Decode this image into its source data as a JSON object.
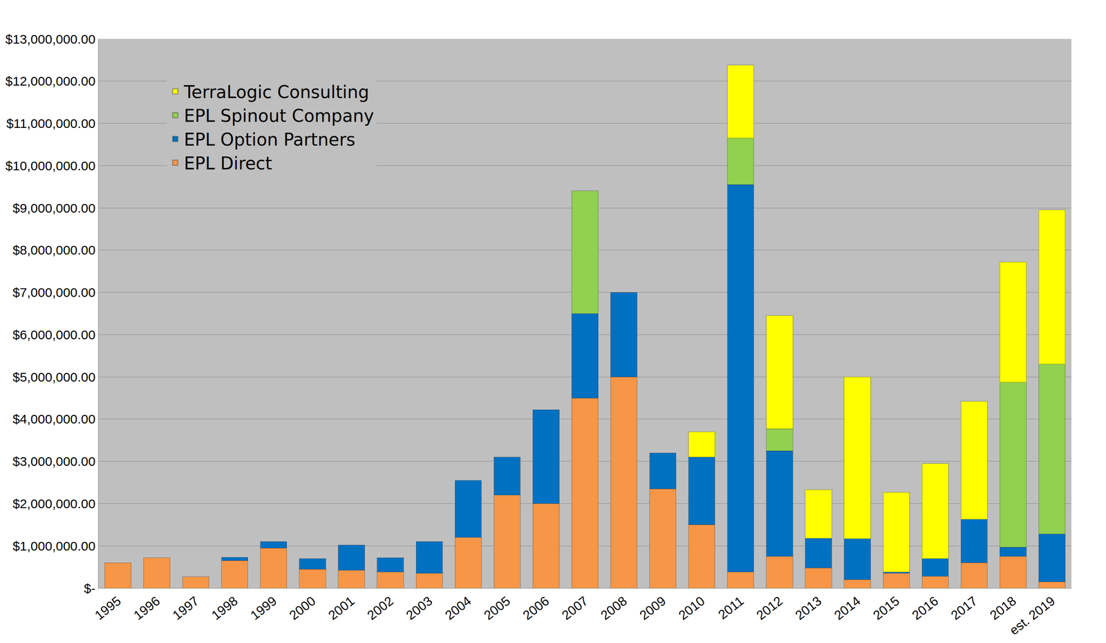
{
  "chart_data": {
    "type": "bar",
    "stacked": true,
    "grid": true,
    "legend": "upper left",
    "categories": [
      "1995",
      "1996",
      "1997",
      "1998",
      "1999",
      "2000",
      "2001",
      "2002",
      "2003",
      "2004",
      "2005",
      "2006",
      "2007",
      "2008",
      "2009",
      "2010",
      "2011",
      "2012",
      "2013",
      "2014",
      "2015",
      "2016",
      "2017",
      "2018",
      "est. 2019"
    ],
    "ylim": [
      0,
      13000000
    ],
    "yticks": [
      {
        "value": 0,
        "label": "$-"
      },
      {
        "value": 1000000,
        "label": "$1,000,000.00"
      },
      {
        "value": 2000000,
        "label": "$2,000,000.00"
      },
      {
        "value": 3000000,
        "label": "$3,000,000.00"
      },
      {
        "value": 4000000,
        "label": "$4,000,000.00"
      },
      {
        "value": 5000000,
        "label": "$5,000,000.00"
      },
      {
        "value": 6000000,
        "label": "$6,000,000.00"
      },
      {
        "value": 7000000,
        "label": "$7,000,000.00"
      },
      {
        "value": 8000000,
        "label": "$8,000,000.00"
      },
      {
        "value": 9000000,
        "label": "$9,000,000.00"
      },
      {
        "value": 10000000,
        "label": "$10,000,000.00"
      },
      {
        "value": 11000000,
        "label": "$11,000,000.00"
      },
      {
        "value": 12000000,
        "label": "$12,000,000.00"
      },
      {
        "value": 13000000,
        "label": "$13,000,000.00"
      }
    ],
    "series": [
      {
        "name": "EPL Direct",
        "color": "#F79646",
        "values": [
          600000,
          720000,
          270000,
          650000,
          950000,
          450000,
          420000,
          380000,
          350000,
          1200000,
          2200000,
          2000000,
          4500000,
          5000000,
          2350000,
          1500000,
          380000,
          750000,
          480000,
          200000,
          350000,
          280000,
          600000,
          750000,
          150000
        ]
      },
      {
        "name": "EPL Option Partners",
        "color": "#0070C0",
        "values": [
          null,
          null,
          null,
          80000,
          150000,
          250000,
          600000,
          340000,
          750000,
          1350000,
          900000,
          2220000,
          2000000,
          2000000,
          850000,
          1600000,
          9170000,
          2500000,
          700000,
          970000,
          30000,
          420000,
          1030000,
          220000,
          1130000
        ]
      },
      {
        "name": "EPL Spinout Company",
        "color": "#92D050",
        "values": [
          null,
          null,
          null,
          null,
          null,
          null,
          null,
          null,
          null,
          null,
          null,
          null,
          2900000,
          null,
          null,
          null,
          1100000,
          520000,
          null,
          null,
          null,
          null,
          null,
          3900000,
          4020000
        ]
      },
      {
        "name": "TerraLogic Consulting",
        "color": "#FFFF00",
        "values": [
          null,
          null,
          null,
          null,
          null,
          null,
          null,
          null,
          null,
          null,
          null,
          null,
          null,
          null,
          null,
          600000,
          1730000,
          2680000,
          1150000,
          3830000,
          1890000,
          2250000,
          2790000,
          2850000,
          3650000
        ]
      }
    ]
  }
}
